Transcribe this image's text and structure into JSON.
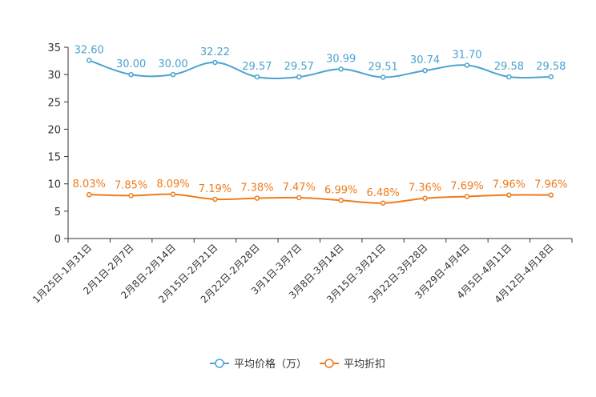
{
  "chart_data": {
    "type": "line",
    "title": "",
    "xlabel": "",
    "ylabel": "",
    "ylim": [
      0,
      35
    ],
    "yticks": [
      0,
      5,
      10,
      15,
      20,
      25,
      30,
      35
    ],
    "grid": false,
    "legend_position": "bottom-center",
    "categories": [
      "1月25日-1月31日",
      "2月1日-2月7日",
      "2月8日-2月14日",
      "2月15日-2月21日",
      "2月22日-2月28日",
      "3月1日-3月7日",
      "3月8日-3月14日",
      "3月15日-3月21日",
      "3月22日-3月28日",
      "3月29日-4月4日",
      "4月5日-4月11日",
      "4月12日-4月18日"
    ],
    "series": [
      {
        "name": "平均价格（万）",
        "color": "#4aa3d0",
        "values": [
          32.6,
          30.0,
          30.0,
          32.22,
          29.57,
          29.57,
          30.99,
          29.51,
          30.74,
          31.7,
          29.58,
          29.58
        ],
        "labels": [
          "32.60",
          "30.00",
          "30.00",
          "32.22",
          "29.57",
          "29.57",
          "30.99",
          "29.51",
          "30.74",
          "31.70",
          "29.58",
          "29.58"
        ]
      },
      {
        "name": "平均折扣",
        "color": "#f07b1a",
        "values": [
          8.03,
          7.85,
          8.09,
          7.19,
          7.38,
          7.47,
          6.99,
          6.48,
          7.36,
          7.69,
          7.96,
          7.96
        ],
        "labels": [
          "8.03%",
          "7.85%",
          "8.09%",
          "7.19%",
          "7.38%",
          "7.47%",
          "6.99%",
          "6.48%",
          "7.36%",
          "7.69%",
          "7.96%",
          "7.96%"
        ]
      }
    ]
  }
}
